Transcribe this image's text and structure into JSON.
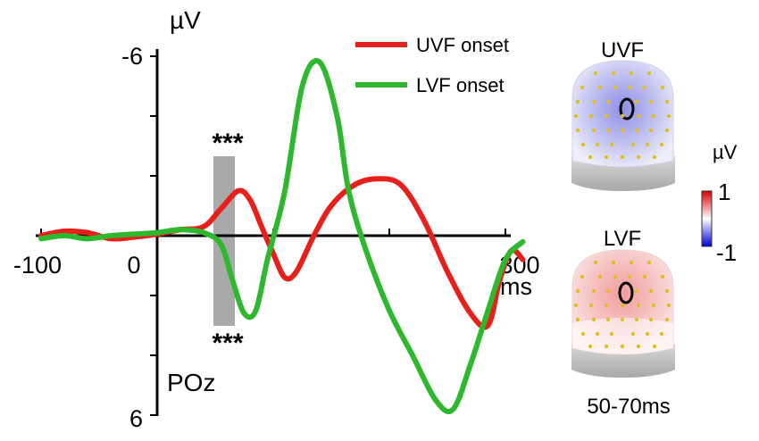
{
  "chart_data": {
    "type": "line",
    "ylabel": "µV",
    "xlabel": "ms",
    "electrode_label": "POz",
    "x_ticks": [
      "-100",
      "0",
      "300"
    ],
    "y_ticks": [
      "-6",
      "6"
    ],
    "xlim": [
      -100,
      300
    ],
    "ylim": [
      -6,
      6
    ],
    "y_inverted": true,
    "legend_position": "top-right",
    "shaded_window_ms": [
      50,
      70
    ],
    "significance": {
      "upper": "***",
      "lower": "***",
      "upper_color": "#e8201c",
      "lower_color": "#2db82d"
    },
    "series": [
      {
        "name": "UVF onset",
        "color": "#e8201c",
        "points": [
          [
            -100,
            0.0
          ],
          [
            -80,
            -0.15
          ],
          [
            -60,
            -0.1
          ],
          [
            -40,
            0.1
          ],
          [
            -20,
            0.05
          ],
          [
            0,
            -0.05
          ],
          [
            20,
            -0.2
          ],
          [
            40,
            -0.3
          ],
          [
            55,
            -0.9
          ],
          [
            70,
            -1.5
          ],
          [
            80,
            -1.2
          ],
          [
            90,
            -0.3
          ],
          [
            100,
            0.6
          ],
          [
            110,
            1.4
          ],
          [
            120,
            1.2
          ],
          [
            135,
            0.0
          ],
          [
            150,
            -1.0
          ],
          [
            170,
            -1.7
          ],
          [
            190,
            -1.9
          ],
          [
            210,
            -1.7
          ],
          [
            230,
            -0.5
          ],
          [
            250,
            1.2
          ],
          [
            270,
            2.6
          ],
          [
            285,
            3.0
          ],
          [
            295,
            1.5
          ],
          [
            305,
            0.5
          ],
          [
            315,
            0.8
          ]
        ]
      },
      {
        "name": "LVF onset",
        "color": "#2db82d",
        "points": [
          [
            -100,
            0.1
          ],
          [
            -80,
            0.0
          ],
          [
            -60,
            0.1
          ],
          [
            -40,
            0.0
          ],
          [
            -20,
            -0.05
          ],
          [
            0,
            -0.1
          ],
          [
            20,
            -0.2
          ],
          [
            40,
            -0.1
          ],
          [
            55,
            0.3
          ],
          [
            65,
            1.5
          ],
          [
            75,
            2.6
          ],
          [
            85,
            2.5
          ],
          [
            95,
            0.8
          ],
          [
            110,
            -1.5
          ],
          [
            125,
            -5.0
          ],
          [
            140,
            -5.8
          ],
          [
            155,
            -4.0
          ],
          [
            165,
            -1.5
          ],
          [
            180,
            0.5
          ],
          [
            200,
            2.5
          ],
          [
            220,
            4.0
          ],
          [
            240,
            5.5
          ],
          [
            255,
            5.8
          ],
          [
            270,
            4.3
          ],
          [
            285,
            2.5
          ],
          [
            300,
            0.8
          ],
          [
            315,
            0.2
          ]
        ]
      }
    ]
  },
  "topomaps": {
    "title_upper": "UVF",
    "title_lower": "LVF",
    "unit": "µV",
    "scale_max": "1",
    "scale_min": "-1",
    "time_window": "50-70ms"
  }
}
